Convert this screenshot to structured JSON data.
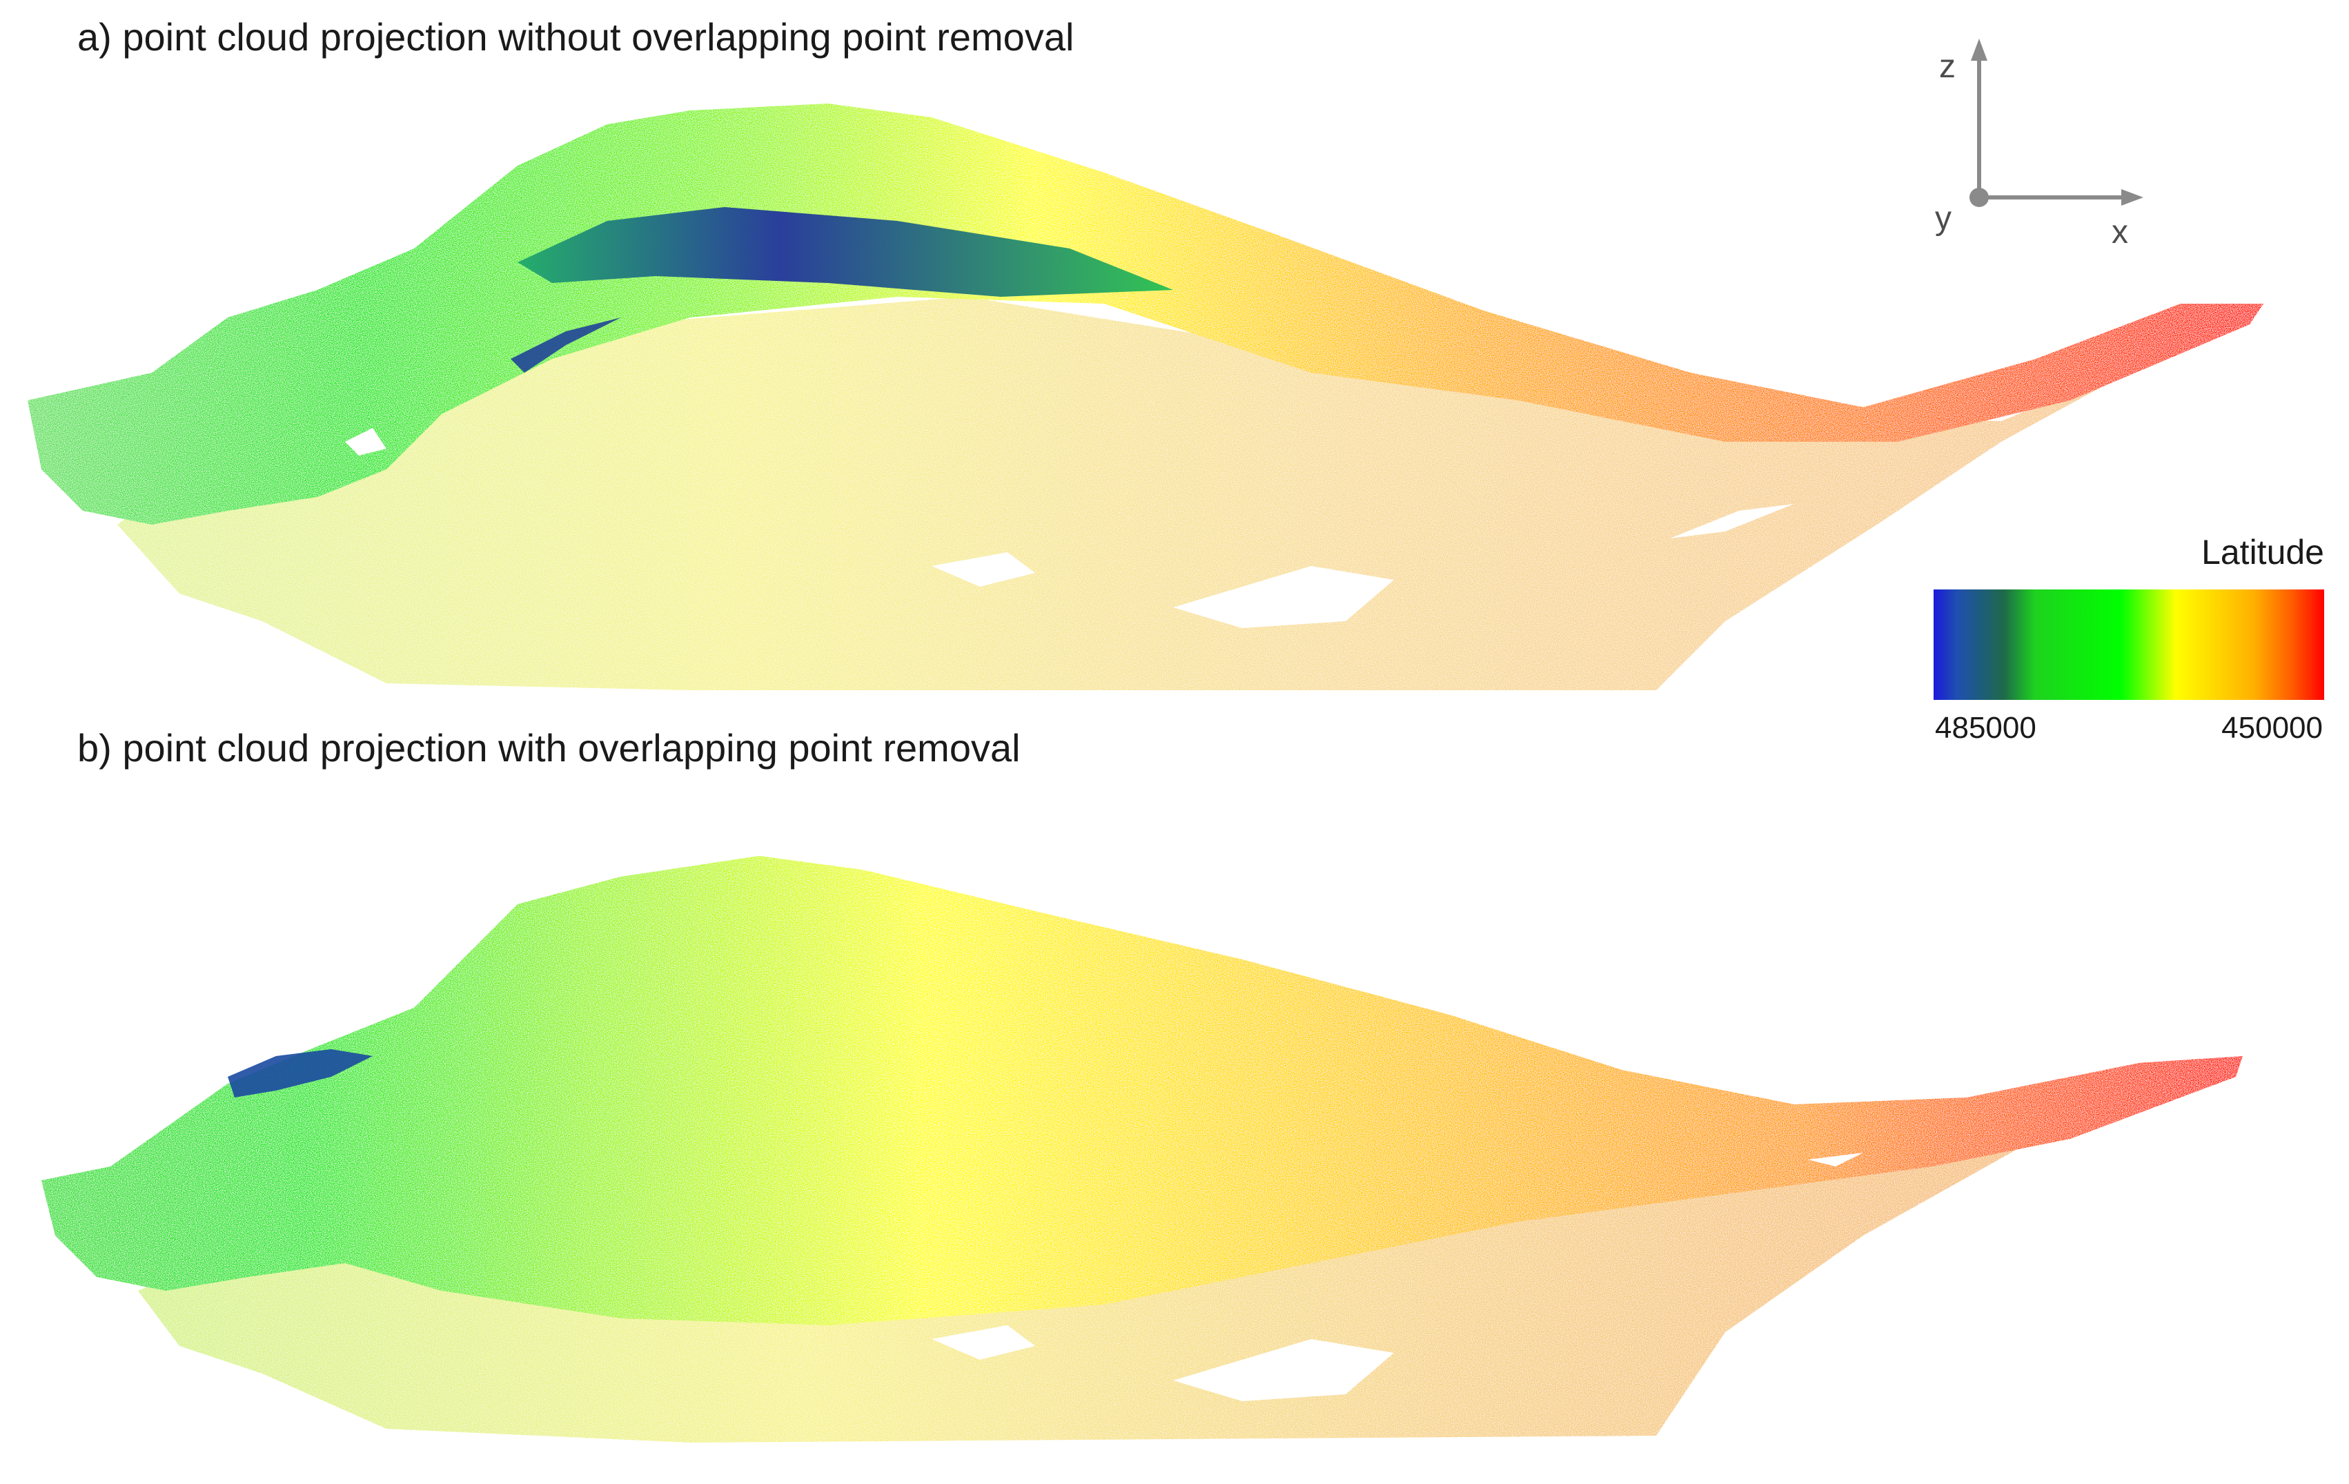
{
  "panel_a": {
    "title": "a) point cloud projection without overlapping point removal"
  },
  "panel_b": {
    "title": "b) point cloud projection with overlapping point removal"
  },
  "axes": {
    "z_label": "z",
    "x_label": "x",
    "y_label": "y",
    "color": "#8a8a8a"
  },
  "legend": {
    "title": "Latitude",
    "min_label": "485000",
    "max_label": "450000",
    "colors": [
      "#1a1adc",
      "#1e6a4a",
      "#00ff00",
      "#ffff00",
      "#ffb000",
      "#ff0000"
    ]
  }
}
